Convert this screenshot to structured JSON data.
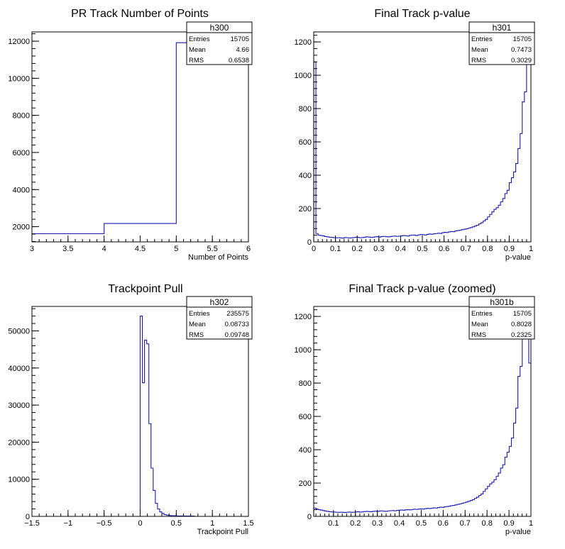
{
  "chart_data": [
    {
      "id": "h300",
      "type": "histogram",
      "title": "PR Track Number of Points",
      "xlabel": "Number of Points",
      "ylabel": "",
      "xlim": [
        3,
        6
      ],
      "ylim": [
        1180,
        12500
      ],
      "xticks": [
        3,
        3.5,
        4,
        4.5,
        5,
        5.5,
        6
      ],
      "xtick_labels": [
        "3",
        "3.5",
        "4",
        "4.5",
        "5",
        "5.5",
        "6"
      ],
      "yticks": [
        2000,
        4000,
        6000,
        8000,
        10000,
        12000
      ],
      "ytick_labels": [
        "2000",
        "4000",
        "6000",
        "8000",
        "10000",
        "12000"
      ],
      "bins": [
        {
          "x0": 3,
          "x1": 4,
          "y": 1620
        },
        {
          "x0": 4,
          "x1": 5,
          "y": 2170
        },
        {
          "x0": 5,
          "x1": 6,
          "y": 11920
        }
      ],
      "stats": {
        "name": "h300",
        "rows": [
          [
            "Entries",
            "15705"
          ],
          [
            "Mean",
            "4.66"
          ],
          [
            "RMS",
            "0.6538"
          ]
        ]
      }
    },
    {
      "id": "h301",
      "type": "histogram",
      "title": "Final Track p-value",
      "xlabel": "p-value",
      "ylabel": "",
      "xlim": [
        0,
        1
      ],
      "ylim": [
        0,
        1260
      ],
      "xticks": [
        0,
        0.1,
        0.2,
        0.3,
        0.4,
        0.5,
        0.6,
        0.7,
        0.8,
        0.9,
        1
      ],
      "xtick_labels": [
        "0",
        "0.1",
        "0.2",
        "0.3",
        "0.4",
        "0.5",
        "0.6",
        "0.7",
        "0.8",
        "0.9",
        "1"
      ],
      "yticks": [
        0,
        200,
        400,
        600,
        800,
        1000,
        1200
      ],
      "ytick_labels": [
        "0",
        "200",
        "400",
        "600",
        "800",
        "1000",
        "1200"
      ],
      "bin_width": 0.01,
      "values": [
        1080,
        50,
        40,
        38,
        36,
        32,
        30,
        28,
        27,
        25,
        24,
        25,
        24,
        22,
        26,
        25,
        23,
        24,
        26,
        28,
        27,
        25,
        26,
        28,
        30,
        29,
        27,
        28,
        30,
        31,
        29,
        32,
        33,
        31,
        30,
        32,
        34,
        35,
        33,
        34,
        36,
        38,
        37,
        35,
        39,
        41,
        40,
        38,
        42,
        44,
        43,
        41,
        45,
        47,
        46,
        48,
        50,
        52,
        51,
        55,
        57,
        56,
        60,
        62,
        61,
        66,
        68,
        70,
        73,
        76,
        78,
        82,
        86,
        90,
        95,
        100,
        108,
        115,
        125,
        135,
        150,
        165,
        180,
        195,
        205,
        220,
        240,
        260,
        290,
        310,
        355,
        385,
        420,
        470,
        560,
        650,
        840,
        900,
        1100,
        1160
      ],
      "stats": {
        "name": "h301",
        "rows": [
          [
            "Entries",
            "15705"
          ],
          [
            "Mean",
            "0.7473"
          ],
          [
            "RMS",
            "0.3029"
          ]
        ]
      }
    },
    {
      "id": "h302",
      "type": "histogram",
      "title": "Trackpoint Pull",
      "xlabel": "Trackpoint Pull",
      "ylabel": "",
      "xlim": [
        -1.5,
        1.5
      ],
      "ylim": [
        0,
        56600
      ],
      "xticks": [
        -1.5,
        -1,
        -0.5,
        0,
        0.5,
        1,
        1.5
      ],
      "xtick_labels": [
        "−1.5",
        "−1",
        "−0.5",
        "0",
        "0.5",
        "1",
        "1.5"
      ],
      "yticks": [
        0,
        10000,
        20000,
        30000,
        40000,
        50000
      ],
      "ytick_labels": [
        "0",
        "10000",
        "20000",
        "30000",
        "40000",
        "50000"
      ],
      "bins": [
        {
          "x0": 0.0,
          "x1": 0.03,
          "y": 54000
        },
        {
          "x0": 0.03,
          "x1": 0.06,
          "y": 36000
        },
        {
          "x0": 0.06,
          "x1": 0.09,
          "y": 47500
        },
        {
          "x0": 0.09,
          "x1": 0.12,
          "y": 46500
        },
        {
          "x0": 0.12,
          "x1": 0.15,
          "y": 25000
        },
        {
          "x0": 0.15,
          "x1": 0.18,
          "y": 13000
        },
        {
          "x0": 0.18,
          "x1": 0.21,
          "y": 7000
        },
        {
          "x0": 0.21,
          "x1": 0.24,
          "y": 3500
        },
        {
          "x0": 0.24,
          "x1": 0.27,
          "y": 2000
        },
        {
          "x0": 0.27,
          "x1": 0.3,
          "y": 1200
        },
        {
          "x0": 0.3,
          "x1": 0.33,
          "y": 800
        },
        {
          "x0": 0.33,
          "x1": 0.36,
          "y": 500
        },
        {
          "x0": 0.36,
          "x1": 0.39,
          "y": 350
        },
        {
          "x0": 0.39,
          "x1": 0.42,
          "y": 250
        },
        {
          "x0": 0.42,
          "x1": 0.5,
          "y": 180
        },
        {
          "x0": 0.5,
          "x1": 0.6,
          "y": 120
        },
        {
          "x0": 0.6,
          "x1": 0.75,
          "y": 80
        }
      ],
      "stats": {
        "name": "h302",
        "rows": [
          [
            "Entries",
            "235575"
          ],
          [
            "Mean",
            "0.08733"
          ],
          [
            "RMS",
            "0.09748"
          ]
        ]
      }
    },
    {
      "id": "h301b",
      "type": "histogram",
      "title": "Final Track p-value (zoomed)",
      "xlabel": "p-value",
      "ylabel": "",
      "xlim": [
        0.01,
        1
      ],
      "ylim": [
        0,
        1260
      ],
      "xticks": [
        0.1,
        0.2,
        0.3,
        0.4,
        0.5,
        0.6,
        0.7,
        0.8,
        0.9,
        1
      ],
      "xtick_labels": [
        "0.1",
        "0.2",
        "0.3",
        "0.4",
        "0.5",
        "0.6",
        "0.7",
        "0.8",
        "0.9",
        "1"
      ],
      "yticks": [
        0,
        200,
        400,
        600,
        800,
        1000,
        1200
      ],
      "ytick_labels": [
        "0",
        "200",
        "400",
        "600",
        "800",
        "1000",
        "1200"
      ],
      "bin_width": 0.0099,
      "values": [
        50,
        45,
        40,
        38,
        35,
        32,
        30,
        28,
        27,
        26,
        25,
        24,
        25,
        24,
        23,
        25,
        26,
        24,
        25,
        27,
        28,
        26,
        27,
        29,
        30,
        29,
        28,
        30,
        31,
        30,
        32,
        33,
        31,
        30,
        33,
        34,
        35,
        33,
        36,
        37,
        38,
        37,
        39,
        40,
        39,
        41,
        43,
        42,
        44,
        45,
        44,
        46,
        48,
        47,
        49,
        51,
        50,
        53,
        55,
        54,
        57,
        59,
        61,
        64,
        66,
        69,
        72,
        75,
        78,
        82,
        86,
        90,
        95,
        100,
        108,
        115,
        125,
        135,
        150,
        165,
        180,
        195,
        205,
        220,
        240,
        260,
        290,
        310,
        355,
        385,
        420,
        470,
        560,
        650,
        840,
        900,
        1100,
        1160,
        1120,
        920
      ],
      "stats": {
        "name": "h301b",
        "rows": [
          [
            "Entries",
            "15705"
          ],
          [
            "Mean",
            "0.8028"
          ],
          [
            "RMS",
            "0.2325"
          ]
        ]
      }
    }
  ],
  "colors": {
    "line": "#1a1ab8",
    "frame": "#000000",
    "background": "#ffffff"
  }
}
